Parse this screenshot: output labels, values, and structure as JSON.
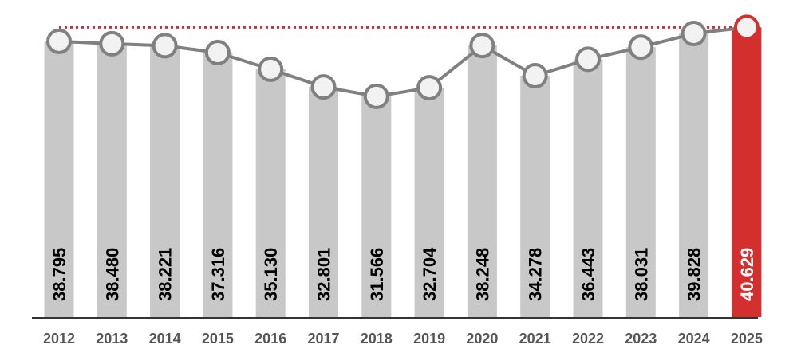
{
  "chart_data": {
    "type": "bar",
    "categories": [
      "2012",
      "2013",
      "2014",
      "2015",
      "2016",
      "2017",
      "2018",
      "2019",
      "2020",
      "2021",
      "2022",
      "2023",
      "2024",
      "2025"
    ],
    "values": [
      38.795,
      38.48,
      38.221,
      37.316,
      35.13,
      32.801,
      31.566,
      32.704,
      38.248,
      34.278,
      36.443,
      38.031,
      39.828,
      40.629
    ],
    "value_labels": [
      "38.795",
      "38.480",
      "38.221",
      "37.316",
      "35.130",
      "32.801",
      "31.566",
      "32.704",
      "38.248",
      "34.278",
      "36.443",
      "38.031",
      "39.828",
      "40.629"
    ],
    "overlay": "line with circular markers connecting the bar values",
    "reference_line": {
      "value": 40.629,
      "style": "dotted",
      "color": "#d32f2f"
    },
    "highlight_category": "2025",
    "colors": {
      "bar": "#c8c8c8",
      "highlight_bar": "#d32f2f",
      "line": "#808080",
      "marker_fill": "#f2f2f2",
      "marker_stroke": "#808080",
      "axis": "#333333",
      "label_text": "#000000",
      "highlight_label_text": "#ffffff"
    },
    "title": "",
    "xlabel": "",
    "ylabel": "",
    "grid": false,
    "legend": "none"
  }
}
